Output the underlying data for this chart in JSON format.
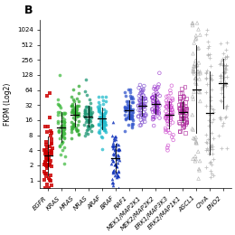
{
  "title": "B",
  "ylabel": "FKPM (Log2)",
  "categories": [
    "EGFR",
    "KRAS",
    "HRAS",
    "NRAS",
    "ARAF",
    "BRAF",
    "RAF1",
    "MEK1/MAP2K1",
    "MEK2/MAP2K2",
    "ERK1/MAP3K3",
    "ERK2/MAP1K1",
    "ASCL1",
    "ChrA",
    "ENO2"
  ],
  "colors": [
    "#cc0000",
    "#44bb44",
    "#33aa33",
    "#229977",
    "#22bbcc",
    "#1133bb",
    "#3355cc",
    "#7744cc",
    "#9933cc",
    "#cc44cc",
    "#aa2299",
    "#aaaaaa",
    "#aaaaaa",
    "#aaaaaa"
  ],
  "ylim_min": 0.7,
  "ylim_max": 1600,
  "yticks": [
    1,
    2,
    4,
    8,
    16,
    32,
    64,
    128,
    256,
    512,
    1024
  ],
  "ytick_labels": [
    "1",
    "2",
    "4",
    "8",
    "16",
    "32",
    "64",
    "128",
    "256",
    "512",
    "1024"
  ],
  "seed": 42,
  "figwidth": 2.6,
  "figheight": 2.6,
  "dpi": 100
}
